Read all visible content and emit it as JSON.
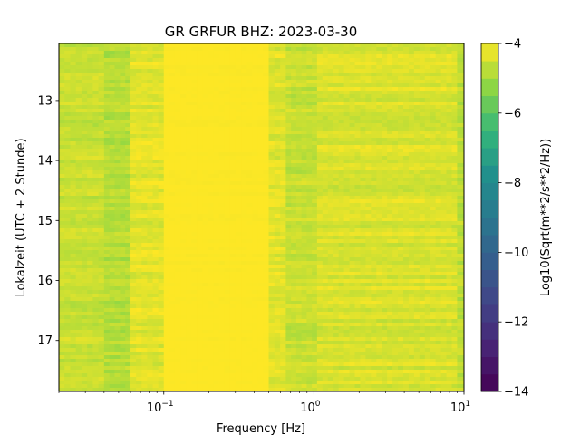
{
  "chart_data": {
    "type": "heatmap",
    "title": "GR GRFUR  BHZ: 2023-03-30",
    "xlabel": "Frequency [Hz]",
    "ylabel": "Lokalzeit (UTC + 2 Stunde)",
    "xscale": "log",
    "xlim": [
      0.02,
      10
    ],
    "ylim": [
      12.05,
      17.85
    ],
    "y_inverted": true,
    "x_ticks": [
      {
        "value": 0.1,
        "label": "10",
        "exp": "−1"
      },
      {
        "value": 1,
        "label": "10",
        "exp": "0"
      },
      {
        "value": 10,
        "label": "10",
        "exp": "1"
      }
    ],
    "y_ticks": [
      {
        "value": 13,
        "label": "13"
      },
      {
        "value": 14,
        "label": "14"
      },
      {
        "value": 15,
        "label": "15"
      },
      {
        "value": 16,
        "label": "16"
      },
      {
        "value": 17,
        "label": "17"
      }
    ],
    "colormap": "viridis",
    "colorbar": {
      "label": "Log10(Sqrt(m**2/s**2/Hz))",
      "range": [
        -14,
        -4
      ],
      "ticks": [
        {
          "value": -4,
          "label": "−4"
        },
        {
          "value": -6,
          "label": "−6"
        },
        {
          "value": -8,
          "label": "−8"
        },
        {
          "value": -10,
          "label": "−10"
        },
        {
          "value": -12,
          "label": "−12"
        },
        {
          "value": -14,
          "label": "−14"
        }
      ]
    },
    "frequency_bands": [
      {
        "f_min": 0.02,
        "f_max": 0.04,
        "value": -4.6
      },
      {
        "f_min": 0.04,
        "f_max": 0.06,
        "value": -4.8
      },
      {
        "f_min": 0.06,
        "f_max": 0.1,
        "value": -4.3
      },
      {
        "f_min": 0.1,
        "f_max": 0.5,
        "value": -4.0
      },
      {
        "f_min": 0.5,
        "f_max": 0.65,
        "value": -4.3
      },
      {
        "f_min": 0.65,
        "f_max": 1.05,
        "value": -4.6
      },
      {
        "f_min": 1.05,
        "f_max": 9.0,
        "value": -4.4
      },
      {
        "f_min": 9.0,
        "f_max": 10,
        "value": -4.7
      }
    ]
  }
}
